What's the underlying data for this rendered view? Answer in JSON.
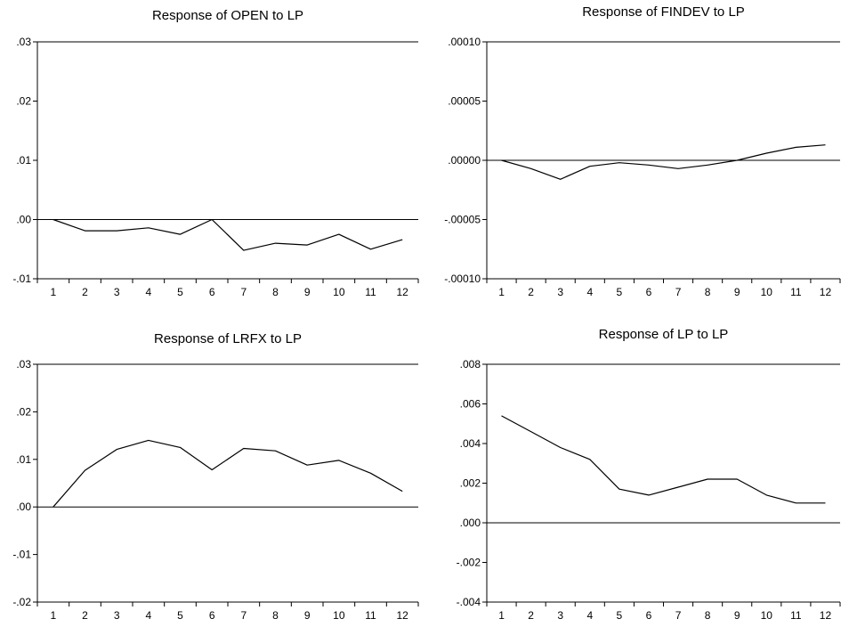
{
  "chart_data": [
    {
      "type": "line",
      "title": "Response of OPEN to LP",
      "xlabel": "",
      "ylabel": "",
      "categories": [
        "1",
        "2",
        "3",
        "4",
        "5",
        "6",
        "7",
        "8",
        "9",
        "10",
        "11",
        "12"
      ],
      "ylim": [
        -0.01,
        0.03
      ],
      "yticks": [
        -0.01,
        0.0,
        0.01,
        0.02,
        0.03
      ],
      "ytick_labels": [
        "-.01",
        ".00",
        ".01",
        ".02",
        ".03"
      ],
      "zero_line": true,
      "grid": false,
      "series": [
        {
          "values": [
            0.0,
            -0.0019,
            -0.0019,
            -0.0014,
            -0.0025,
            0.0,
            -0.0052,
            -0.004,
            -0.0043,
            -0.0025,
            -0.005,
            -0.0034
          ]
        }
      ]
    },
    {
      "type": "line",
      "title": "Response of FINDEV to LP",
      "xlabel": "",
      "ylabel": "",
      "categories": [
        "1",
        "2",
        "3",
        "4",
        "5",
        "6",
        "7",
        "8",
        "9",
        "10",
        "11",
        "12"
      ],
      "ylim": [
        -0.0001,
        0.0001
      ],
      "yticks": [
        -0.0001,
        -5e-05,
        0.0,
        5e-05,
        0.0001
      ],
      "ytick_labels": [
        "-.00010",
        "-.00005",
        ".00000",
        ".00005",
        ".00010"
      ],
      "zero_line": true,
      "grid": false,
      "series": [
        {
          "values": [
            0.0,
            -7e-06,
            -1.6e-05,
            -5e-06,
            -2e-06,
            -4e-06,
            -7e-06,
            -4e-06,
            0.0,
            6e-06,
            1.1e-05,
            1.3e-05
          ]
        }
      ]
    },
    {
      "type": "line",
      "title": "Response of LRFX to LP",
      "xlabel": "",
      "ylabel": "",
      "categories": [
        "1",
        "2",
        "3",
        "4",
        "5",
        "6",
        "7",
        "8",
        "9",
        "10",
        "11",
        "12"
      ],
      "ylim": [
        -0.02,
        0.03
      ],
      "yticks": [
        -0.02,
        -0.01,
        0.0,
        0.01,
        0.02,
        0.03
      ],
      "ytick_labels": [
        "-.02",
        "-.01",
        ".00",
        ".01",
        ".02",
        ".03"
      ],
      "zero_line": true,
      "grid": false,
      "series": [
        {
          "values": [
            0.0,
            0.0077,
            0.0121,
            0.014,
            0.0125,
            0.0078,
            0.0123,
            0.0118,
            0.0088,
            0.0098,
            0.0071,
            0.0033
          ]
        }
      ]
    },
    {
      "type": "line",
      "title": "Response of LP to LP",
      "xlabel": "",
      "ylabel": "",
      "categories": [
        "1",
        "2",
        "3",
        "4",
        "5",
        "6",
        "7",
        "8",
        "9",
        "10",
        "11",
        "12"
      ],
      "ylim": [
        -0.004,
        0.008
      ],
      "yticks": [
        -0.004,
        -0.002,
        0.0,
        0.002,
        0.004,
        0.006,
        0.008
      ],
      "ytick_labels": [
        "-.004",
        "-.002",
        ".000",
        ".002",
        ".004",
        ".006",
        ".008"
      ],
      "zero_line": true,
      "grid": false,
      "series": [
        {
          "values": [
            0.0054,
            0.0046,
            0.0038,
            0.0032,
            0.0017,
            0.0014,
            0.0018,
            0.0022,
            0.0022,
            0.0014,
            0.001,
            0.001
          ]
        }
      ]
    }
  ]
}
